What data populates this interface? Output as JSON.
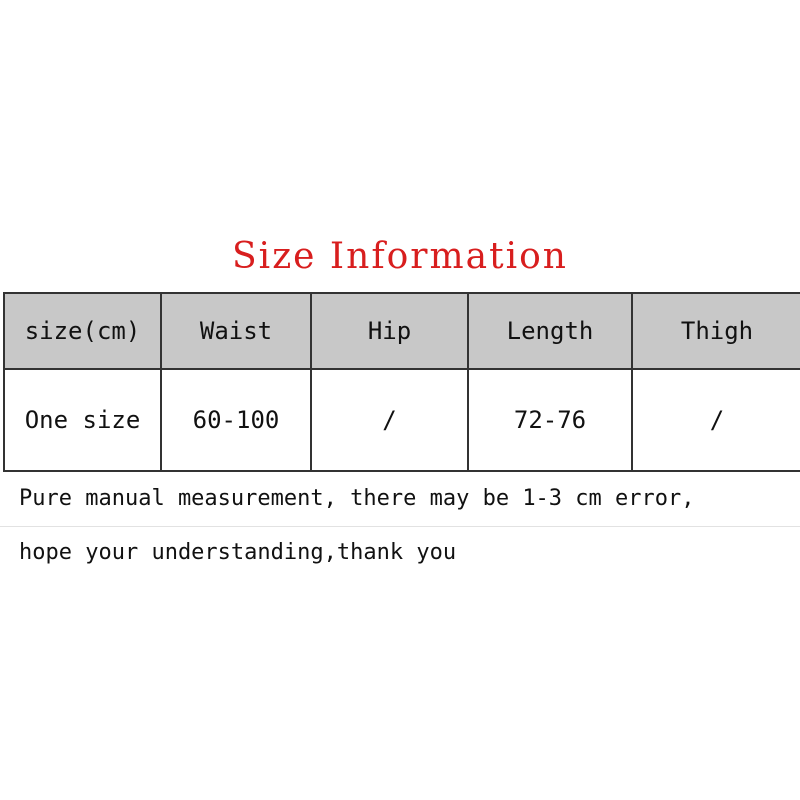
{
  "title": "Size Information",
  "colors": {
    "title": "#d81e1e",
    "header_bg": "#c8c8c8",
    "border": "#333333"
  },
  "table": {
    "headers": [
      "size(cm)",
      "Waist",
      "Hip",
      "Length",
      "Thigh"
    ],
    "rows": [
      [
        "One size",
        "60-100",
        "/",
        "72-76",
        "/"
      ]
    ]
  },
  "notes": [
    "Pure manual measurement, there may be 1-3 cm error,",
    "hope your understanding,thank you"
  ]
}
